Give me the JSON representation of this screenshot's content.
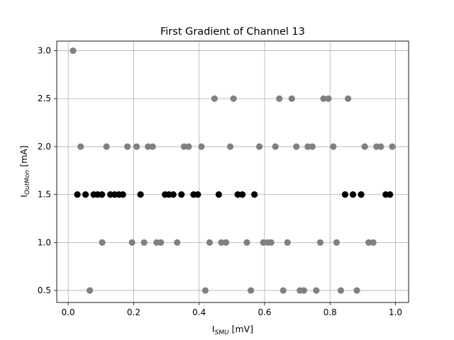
{
  "chart_data": {
    "type": "scatter",
    "title": "First Gradient of Channel 13",
    "xlabel": {
      "base": "I",
      "sub": "SMU",
      "unit": " [mV]"
    },
    "ylabel": {
      "base": "I",
      "sub": "OutMon",
      "unit": " [mA]"
    },
    "xlim": [
      -0.035,
      1.04
    ],
    "ylim": [
      0.375,
      3.1
    ],
    "xticks": [
      0.0,
      0.2,
      0.4,
      0.6,
      0.8,
      1.0
    ],
    "xtick_labels": [
      "0.0",
      "0.2",
      "0.4",
      "0.6",
      "0.8",
      "1.0"
    ],
    "yticks": [
      0.5,
      1.0,
      1.5,
      2.0,
      2.5,
      3.0
    ],
    "ytick_labels": [
      "0.5",
      "1.0",
      "1.5",
      "2.0",
      "2.5",
      "3.0"
    ],
    "grid": true,
    "colors": {
      "gray": "#808080",
      "black": "#000000"
    },
    "series": [
      {
        "color": "#808080",
        "points": [
          [
            0.015,
            3.0
          ],
          [
            0.038,
            2.0
          ],
          [
            0.117,
            2.0
          ],
          [
            0.181,
            2.0
          ],
          [
            0.209,
            2.0
          ],
          [
            0.244,
            2.0
          ],
          [
            0.258,
            2.0
          ],
          [
            0.354,
            2.0
          ],
          [
            0.368,
            2.0
          ],
          [
            0.407,
            2.0
          ],
          [
            0.495,
            2.0
          ],
          [
            0.584,
            2.0
          ],
          [
            0.633,
            2.0
          ],
          [
            0.697,
            2.0
          ],
          [
            0.732,
            2.0
          ],
          [
            0.746,
            2.0
          ],
          [
            0.81,
            2.0
          ],
          [
            0.906,
            2.0
          ],
          [
            0.942,
            2.0
          ],
          [
            0.955,
            2.0
          ],
          [
            0.99,
            2.0
          ],
          [
            0.447,
            2.5
          ],
          [
            0.505,
            2.5
          ],
          [
            0.645,
            2.5
          ],
          [
            0.683,
            2.5
          ],
          [
            0.78,
            2.5
          ],
          [
            0.795,
            2.5
          ],
          [
            0.855,
            2.5
          ],
          [
            0.104,
            1.0
          ],
          [
            0.195,
            1.0
          ],
          [
            0.232,
            1.0
          ],
          [
            0.27,
            1.0
          ],
          [
            0.283,
            1.0
          ],
          [
            0.333,
            1.0
          ],
          [
            0.432,
            1.0
          ],
          [
            0.468,
            1.0
          ],
          [
            0.482,
            1.0
          ],
          [
            0.546,
            1.0
          ],
          [
            0.596,
            1.0
          ],
          [
            0.609,
            1.0
          ],
          [
            0.62,
            1.0
          ],
          [
            0.67,
            1.0
          ],
          [
            0.77,
            1.0
          ],
          [
            0.82,
            1.0
          ],
          [
            0.918,
            1.0
          ],
          [
            0.932,
            1.0
          ],
          [
            0.066,
            0.5
          ],
          [
            0.419,
            0.5
          ],
          [
            0.558,
            0.5
          ],
          [
            0.657,
            0.5
          ],
          [
            0.708,
            0.5
          ],
          [
            0.72,
            0.5
          ],
          [
            0.758,
            0.5
          ],
          [
            0.833,
            0.5
          ],
          [
            0.882,
            0.5
          ]
        ]
      },
      {
        "color": "#000000",
        "points": [
          [
            0.028,
            1.5
          ],
          [
            0.053,
            1.5
          ],
          [
            0.078,
            1.5
          ],
          [
            0.09,
            1.5
          ],
          [
            0.103,
            1.5
          ],
          [
            0.129,
            1.5
          ],
          [
            0.142,
            1.5
          ],
          [
            0.155,
            1.5
          ],
          [
            0.167,
            1.5
          ],
          [
            0.221,
            1.5
          ],
          [
            0.296,
            1.5
          ],
          [
            0.308,
            1.5
          ],
          [
            0.321,
            1.5
          ],
          [
            0.346,
            1.5
          ],
          [
            0.383,
            1.5
          ],
          [
            0.396,
            1.5
          ],
          [
            0.46,
            1.5
          ],
          [
            0.518,
            1.5
          ],
          [
            0.532,
            1.5
          ],
          [
            0.569,
            1.5
          ],
          [
            0.846,
            1.5
          ],
          [
            0.87,
            1.5
          ],
          [
            0.895,
            1.5
          ],
          [
            0.97,
            1.5
          ],
          [
            0.983,
            1.5
          ]
        ]
      }
    ]
  }
}
